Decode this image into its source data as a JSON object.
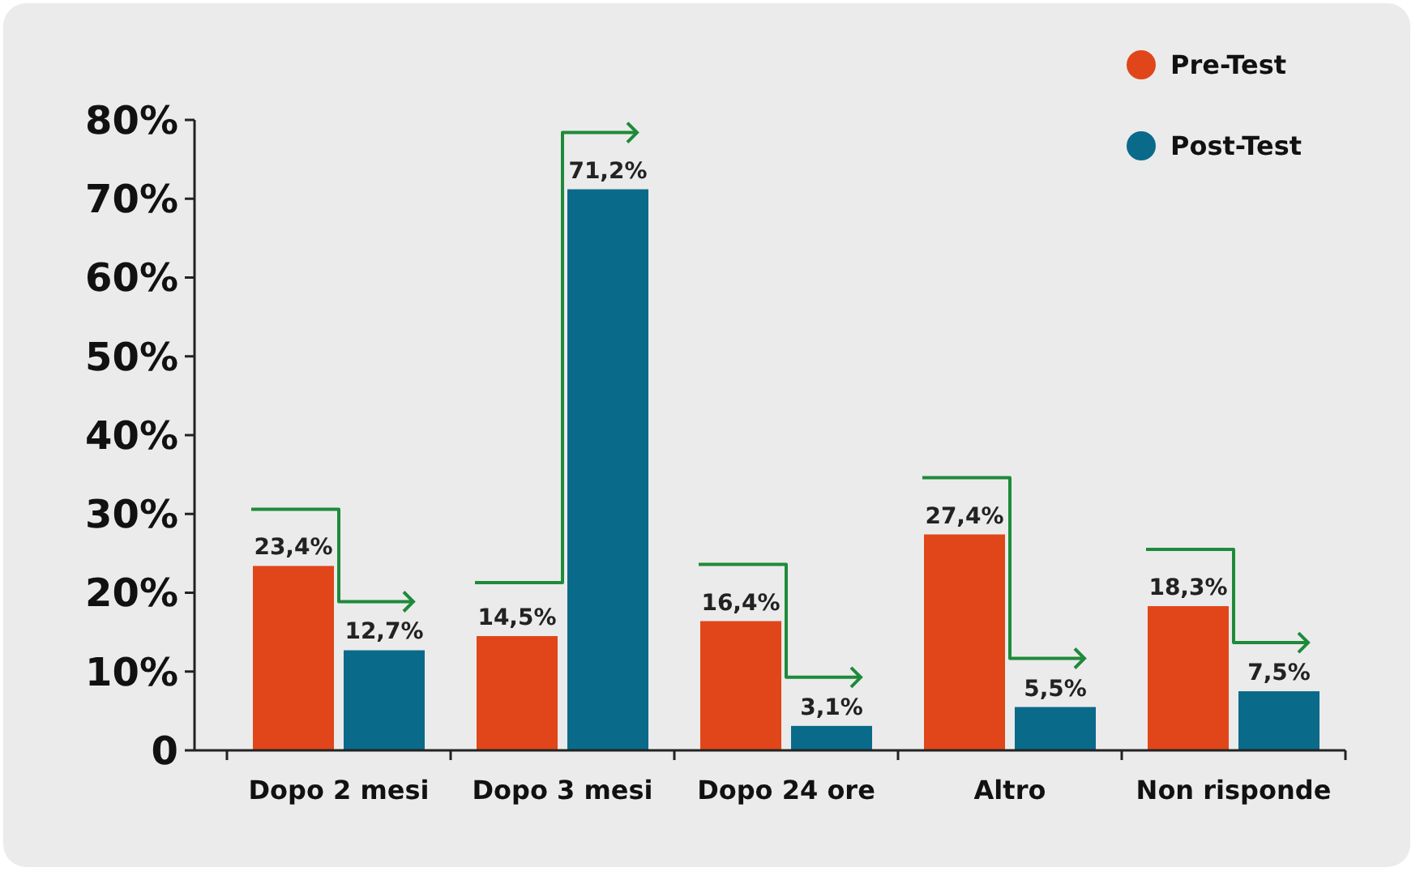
{
  "chart_data": {
    "type": "bar",
    "categories": [
      "Dopo 2 mesi",
      "Dopo 3 mesi",
      "Dopo 24 ore",
      "Altro",
      "Non risponde"
    ],
    "series": [
      {
        "name": "Pre-Test",
        "color": "#e0461a",
        "values": [
          23.4,
          14.5,
          16.4,
          27.4,
          18.3
        ],
        "value_labels": [
          "23,4%",
          "14,5%",
          "16,4%",
          "27,4%",
          "18,3%"
        ]
      },
      {
        "name": "Post-Test",
        "color": "#0a6a8a",
        "values": [
          12.7,
          71.2,
          3.1,
          5.5,
          7.5
        ],
        "value_labels": [
          "12,7%",
          "71,2%",
          "3,1%",
          "5,5%",
          "7,5%"
        ]
      }
    ],
    "ylim": [
      0,
      80
    ],
    "yticks": [
      {
        "value": 0,
        "label": "0"
      },
      {
        "value": 10,
        "label": "10%"
      },
      {
        "value": 20,
        "label": "20%"
      },
      {
        "value": 30,
        "label": "30%"
      },
      {
        "value": 40,
        "label": "40%"
      },
      {
        "value": 50,
        "label": "50%"
      },
      {
        "value": 60,
        "label": "60%"
      },
      {
        "value": 70,
        "label": "70%"
      },
      {
        "value": 80,
        "label": "80%"
      }
    ],
    "grid": false,
    "legend": "top right"
  }
}
